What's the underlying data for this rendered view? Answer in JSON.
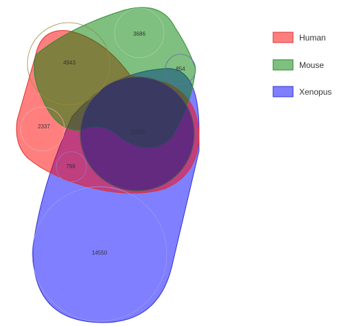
{
  "sets": [
    {
      "name": "Human",
      "fill": "#ff0000",
      "stroke": "#e03030"
    },
    {
      "name": "Mouse",
      "fill": "#008000",
      "stroke": "#2e8b2e"
    },
    {
      "name": "Xenopus",
      "fill": "#0000ff",
      "stroke": "#3030d0"
    }
  ],
  "regions": [
    {
      "id": "human-only",
      "value": "2337"
    },
    {
      "id": "human-mouse",
      "value": "4943"
    },
    {
      "id": "mouse-only",
      "value": "3686"
    },
    {
      "id": "mouse-xenopus",
      "value": "854"
    },
    {
      "id": "all-three",
      "value": "11535"
    },
    {
      "id": "human-xenopus",
      "value": "799"
    },
    {
      "id": "xenopus-only",
      "value": "14550"
    }
  ],
  "legend": {
    "items": [
      {
        "label": "Human",
        "color": "#ff0000"
      },
      {
        "label": "Mouse",
        "color": "#008000"
      },
      {
        "label": "Xenopus",
        "color": "#0000ff"
      }
    ]
  }
}
